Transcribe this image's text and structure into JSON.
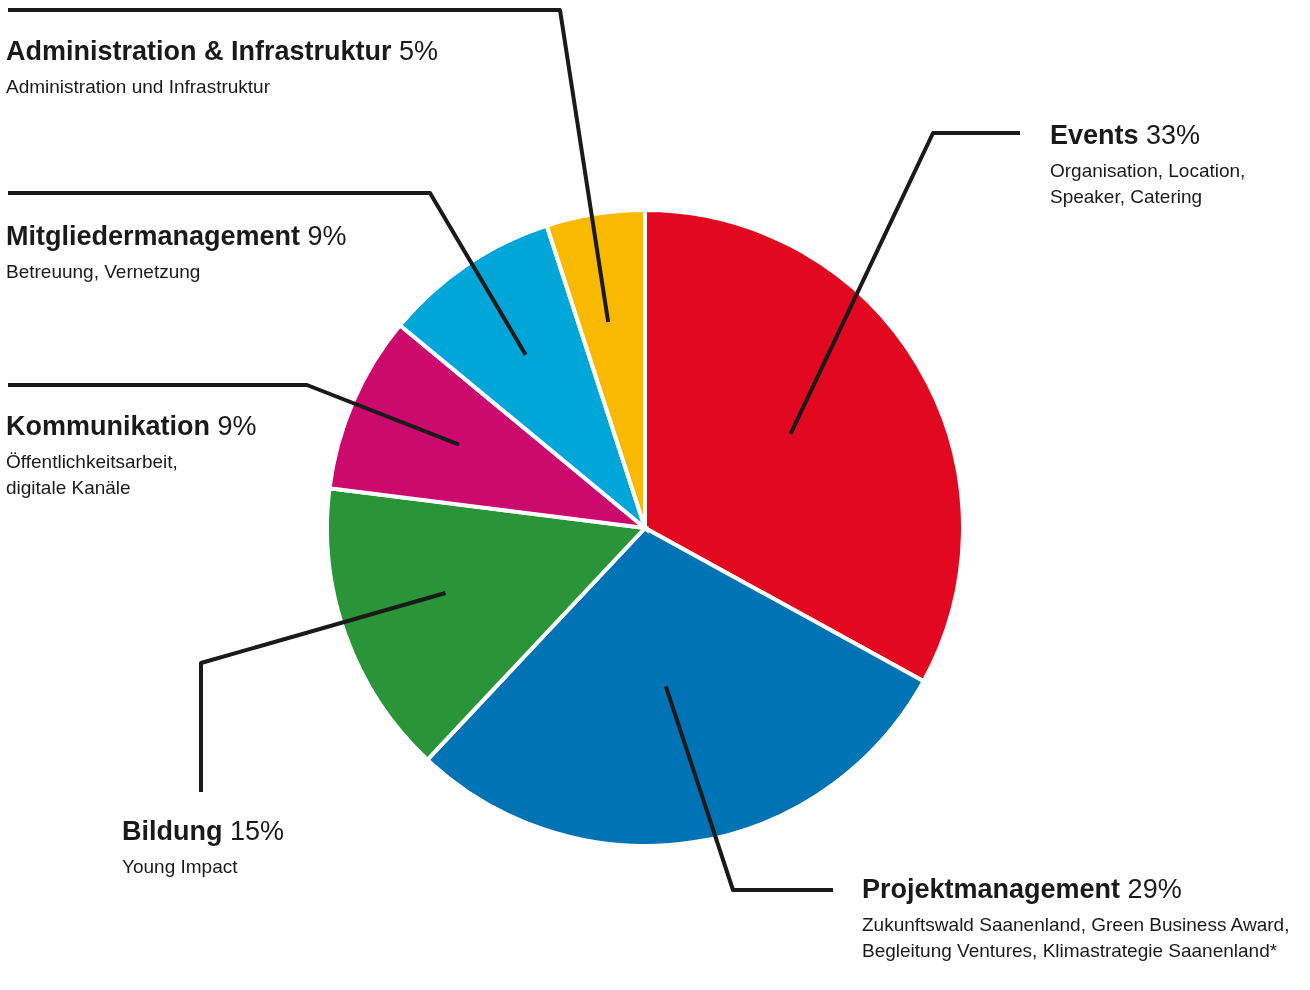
{
  "chart_data": {
    "type": "pie",
    "categories": [
      "Events",
      "Projektmanagement",
      "Bildung",
      "Kommunikation",
      "Mitgliedermanagement",
      "Administration & Infrastruktur"
    ],
    "values": [
      33,
      29,
      15,
      9,
      9,
      5
    ],
    "value_labels": [
      "33%",
      "29%",
      "15%",
      "9%",
      "9%",
      "5%"
    ],
    "colors": [
      "#e20820",
      "#0073b5",
      "#299538",
      "#cc0a6e",
      "#00a6d7",
      "#f8b900"
    ],
    "annotations": [
      "Organisation, Location, Speaker, Catering",
      "Zukunftswald Saanenland, Green Business Award, Begleitung Ventures, Klimastrategie Saanenland*",
      "Young Impact",
      "Öffentlichkeitsarbeit, digitale Kanäle",
      "Betreuung, Vernetzung",
      "Administration und Infrastruktur"
    ],
    "legend": false
  }
}
